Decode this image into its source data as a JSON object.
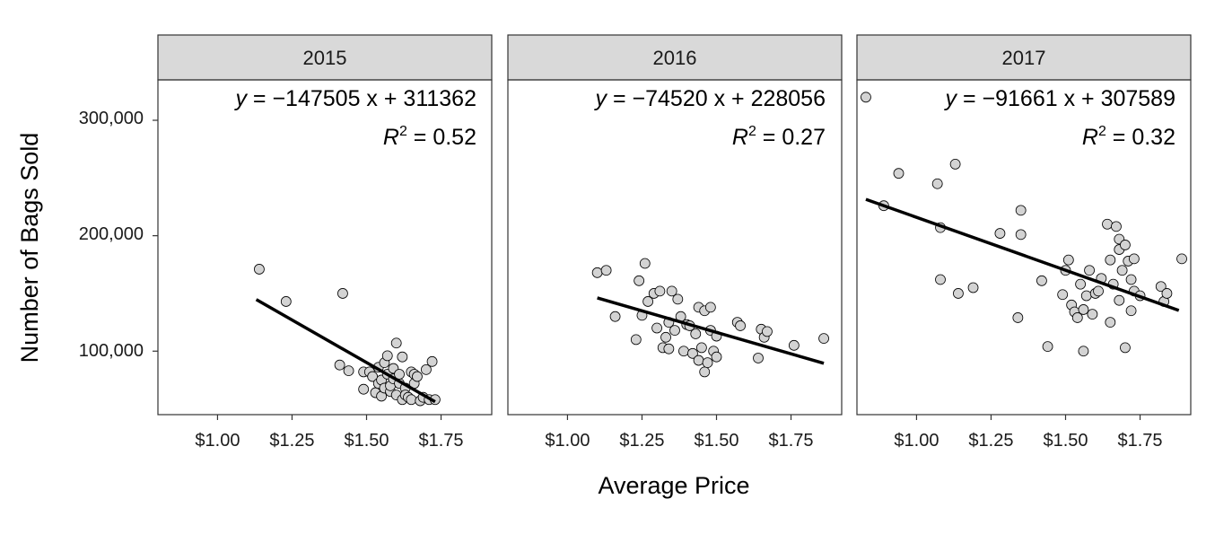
{
  "chart_data": {
    "type": "scatter",
    "facet_by": "year",
    "xlabel": "Average Price",
    "ylabel": "Number of Bags Sold",
    "x_range": [
      0.8,
      1.92
    ],
    "y_range": [
      45000,
      335000
    ],
    "x_ticks": [
      1.0,
      1.25,
      1.5,
      1.75
    ],
    "x_tick_labels": [
      "$1.00",
      "$1.25",
      "$1.50",
      "$1.75"
    ],
    "y_ticks": [
      100000,
      200000,
      300000
    ],
    "y_tick_labels": [
      "100,000",
      "200,000",
      "300,000"
    ],
    "grid": false,
    "point_fill": "#d3d3d3",
    "point_stroke": "#000000",
    "line_color": "#000000",
    "strip_fill": "#d9d9d9",
    "panels": [
      {
        "label": "2015",
        "equation_prefix": "y",
        "equation_rest": " = −147505 x + 311362",
        "r2_prefix": "R",
        "r2_sup": "2",
        "r2_rest": " = 0.52",
        "fit": {
          "x_start": 1.13,
          "x_end": 1.73,
          "slope": -147505,
          "intercept": 311362
        },
        "points": [
          [
            1.14,
            171000
          ],
          [
            1.23,
            143000
          ],
          [
            1.41,
            88000
          ],
          [
            1.42,
            150000
          ],
          [
            1.44,
            83000
          ],
          [
            1.49,
            67000
          ],
          [
            1.49,
            82000
          ],
          [
            1.51,
            82000
          ],
          [
            1.52,
            78000
          ],
          [
            1.53,
            64000
          ],
          [
            1.54,
            86000
          ],
          [
            1.54,
            72000
          ],
          [
            1.55,
            61000
          ],
          [
            1.55,
            75000
          ],
          [
            1.56,
            90000
          ],
          [
            1.56,
            68000
          ],
          [
            1.57,
            80000
          ],
          [
            1.57,
            96000
          ],
          [
            1.58,
            65000
          ],
          [
            1.58,
            70000
          ],
          [
            1.59,
            85000
          ],
          [
            1.59,
            76000
          ],
          [
            1.6,
            107000
          ],
          [
            1.6,
            62000
          ],
          [
            1.61,
            72000
          ],
          [
            1.61,
            80000
          ],
          [
            1.62,
            95000
          ],
          [
            1.62,
            58000
          ],
          [
            1.63,
            68000
          ],
          [
            1.63,
            62000
          ],
          [
            1.64,
            60000
          ],
          [
            1.65,
            82000
          ],
          [
            1.65,
            58000
          ],
          [
            1.66,
            72000
          ],
          [
            1.66,
            80000
          ],
          [
            1.67,
            78000
          ],
          [
            1.68,
            57000
          ],
          [
            1.69,
            60000
          ],
          [
            1.7,
            84000
          ],
          [
            1.71,
            58000
          ],
          [
            1.72,
            91000
          ],
          [
            1.73,
            58000
          ]
        ]
      },
      {
        "label": "2016",
        "equation_prefix": "y",
        "equation_rest": " = −74520 x + 228056",
        "r2_prefix": "R",
        "r2_sup": "2",
        "r2_rest": " = 0.27",
        "fit": {
          "x_start": 1.1,
          "x_end": 1.86,
          "slope": -74520,
          "intercept": 228056
        },
        "points": [
          [
            1.1,
            168000
          ],
          [
            1.13,
            170000
          ],
          [
            1.16,
            130000
          ],
          [
            1.23,
            110000
          ],
          [
            1.24,
            161000
          ],
          [
            1.25,
            131000
          ],
          [
            1.26,
            176000
          ],
          [
            1.27,
            143000
          ],
          [
            1.29,
            150000
          ],
          [
            1.3,
            120000
          ],
          [
            1.31,
            152000
          ],
          [
            1.32,
            103000
          ],
          [
            1.33,
            112000
          ],
          [
            1.34,
            125000
          ],
          [
            1.34,
            102000
          ],
          [
            1.35,
            152000
          ],
          [
            1.36,
            118000
          ],
          [
            1.37,
            145000
          ],
          [
            1.38,
            130000
          ],
          [
            1.39,
            100000
          ],
          [
            1.4,
            123000
          ],
          [
            1.41,
            122000
          ],
          [
            1.42,
            98000
          ],
          [
            1.43,
            115000
          ],
          [
            1.44,
            138000
          ],
          [
            1.44,
            92000
          ],
          [
            1.45,
            103000
          ],
          [
            1.46,
            82000
          ],
          [
            1.46,
            135000
          ],
          [
            1.47,
            90000
          ],
          [
            1.48,
            118000
          ],
          [
            1.48,
            138000
          ],
          [
            1.49,
            100000
          ],
          [
            1.5,
            95000
          ],
          [
            1.5,
            113000
          ],
          [
            1.57,
            125000
          ],
          [
            1.58,
            122000
          ],
          [
            1.64,
            94000
          ],
          [
            1.65,
            119000
          ],
          [
            1.66,
            112000
          ],
          [
            1.67,
            117000
          ],
          [
            1.76,
            105000
          ],
          [
            1.86,
            111000
          ]
        ]
      },
      {
        "label": "2017",
        "equation_prefix": "y",
        "equation_rest": " = −91661 x + 307589",
        "r2_prefix": "R",
        "r2_sup": "2",
        "r2_rest": " = 0.32",
        "fit": {
          "x_start": 0.83,
          "x_end": 1.88,
          "slope": -91661,
          "intercept": 307589
        },
        "points": [
          [
            0.83,
            320000
          ],
          [
            0.89,
            226000
          ],
          [
            0.94,
            254000
          ],
          [
            1.07,
            245000
          ],
          [
            1.08,
            207000
          ],
          [
            1.08,
            162000
          ],
          [
            1.13,
            262000
          ],
          [
            1.14,
            150000
          ],
          [
            1.19,
            155000
          ],
          [
            1.28,
            202000
          ],
          [
            1.34,
            129000
          ],
          [
            1.35,
            222000
          ],
          [
            1.35,
            201000
          ],
          [
            1.42,
            161000
          ],
          [
            1.44,
            104000
          ],
          [
            1.49,
            149000
          ],
          [
            1.5,
            170000
          ],
          [
            1.51,
            179000
          ],
          [
            1.52,
            140000
          ],
          [
            1.53,
            134000
          ],
          [
            1.54,
            129000
          ],
          [
            1.55,
            158000
          ],
          [
            1.56,
            136000
          ],
          [
            1.56,
            100000
          ],
          [
            1.57,
            148000
          ],
          [
            1.58,
            170000
          ],
          [
            1.59,
            132000
          ],
          [
            1.6,
            150000
          ],
          [
            1.61,
            152000
          ],
          [
            1.62,
            163000
          ],
          [
            1.64,
            210000
          ],
          [
            1.65,
            125000
          ],
          [
            1.65,
            179000
          ],
          [
            1.66,
            158000
          ],
          [
            1.67,
            208000
          ],
          [
            1.68,
            197000
          ],
          [
            1.68,
            188000
          ],
          [
            1.68,
            144000
          ],
          [
            1.69,
            170000
          ],
          [
            1.7,
            192000
          ],
          [
            1.7,
            103000
          ],
          [
            1.71,
            178000
          ],
          [
            1.72,
            135000
          ],
          [
            1.72,
            162000
          ],
          [
            1.73,
            152000
          ],
          [
            1.73,
            180000
          ],
          [
            1.75,
            148000
          ],
          [
            1.82,
            156000
          ],
          [
            1.83,
            143000
          ],
          [
            1.84,
            150000
          ],
          [
            1.89,
            180000
          ]
        ]
      }
    ]
  }
}
